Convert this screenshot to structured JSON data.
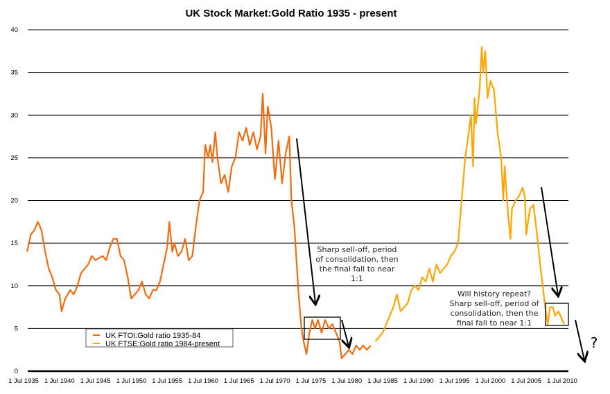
{
  "chart_data": {
    "type": "line",
    "title": "UK Stock Market:Gold Ratio 1935 - present",
    "xlabel": "",
    "ylabel": "",
    "ylim": [
      0,
      40
    ],
    "xlim": [
      1935,
      2010
    ],
    "grid": true,
    "y_ticks": [
      "0",
      "5",
      "10",
      "15",
      "20",
      "25",
      "30",
      "35",
      "40"
    ],
    "x_ticks": [
      "1 Jul 1935",
      "1 Jul 1940",
      "1 Jul 1945",
      "1 Jul 1950",
      "1 Jul 1955",
      "1 Jul 1960",
      "1 Jul 1965",
      "1 Jul 1970",
      "1 Jul 1975",
      "1 Jul 1980",
      "1 Jul 1985",
      "1 Jul 1990",
      "1 Jul 1995",
      "1 Jul 2000",
      "1 Jul 2005",
      "1 Jul 2010"
    ],
    "legend_position": "bottom-left",
    "series": [
      {
        "name": "UK FTOI:Gold ratio 1935-84",
        "color": "#f26b0f",
        "points": [
          [
            1935.5,
            14
          ],
          [
            1936,
            16
          ],
          [
            1936.5,
            16.5
          ],
          [
            1937,
            17.5
          ],
          [
            1937.5,
            16.5
          ],
          [
            1938,
            14
          ],
          [
            1938.5,
            12
          ],
          [
            1939,
            11
          ],
          [
            1939.5,
            9.5
          ],
          [
            1940,
            9
          ],
          [
            1940.3,
            7
          ],
          [
            1940.8,
            8.5
          ],
          [
            1941.5,
            9.5
          ],
          [
            1942,
            9
          ],
          [
            1942.5,
            10
          ],
          [
            1943,
            11.5
          ],
          [
            1943.5,
            12
          ],
          [
            1944,
            12.5
          ],
          [
            1944.5,
            13.5
          ],
          [
            1945,
            13
          ],
          [
            1946,
            13.5
          ],
          [
            1946.5,
            13
          ],
          [
            1947,
            14.5
          ],
          [
            1947.5,
            15.5
          ],
          [
            1948,
            15.5
          ],
          [
            1948.5,
            13.5
          ],
          [
            1949,
            13
          ],
          [
            1949.5,
            11
          ],
          [
            1950,
            8.5
          ],
          [
            1950.5,
            9
          ],
          [
            1951,
            9.5
          ],
          [
            1951.5,
            10.5
          ],
          [
            1952,
            9
          ],
          [
            1952.5,
            8.5
          ],
          [
            1953,
            9.5
          ],
          [
            1953.5,
            9.5
          ],
          [
            1954,
            10.5
          ],
          [
            1954.5,
            12.5
          ],
          [
            1955,
            14.5
          ],
          [
            1955.3,
            17.5
          ],
          [
            1955.7,
            14
          ],
          [
            1956,
            15
          ],
          [
            1956.5,
            13.5
          ],
          [
            1957,
            14
          ],
          [
            1957.5,
            15.5
          ],
          [
            1958,
            13
          ],
          [
            1958.5,
            13.5
          ],
          [
            1959,
            17
          ],
          [
            1959.5,
            20
          ],
          [
            1960,
            21
          ],
          [
            1960.3,
            26.5
          ],
          [
            1960.7,
            25
          ],
          [
            1961,
            26.5
          ],
          [
            1961.3,
            24.5
          ],
          [
            1961.7,
            28
          ],
          [
            1962,
            25
          ],
          [
            1962.5,
            22
          ],
          [
            1963,
            23
          ],
          [
            1963.5,
            21
          ],
          [
            1964,
            24
          ],
          [
            1964.5,
            25
          ],
          [
            1965,
            28
          ],
          [
            1965.5,
            27
          ],
          [
            1966,
            28.5
          ],
          [
            1966.5,
            26.5
          ],
          [
            1967,
            28
          ],
          [
            1967.5,
            26
          ],
          [
            1968,
            27.5
          ],
          [
            1968.3,
            32.5
          ],
          [
            1968.7,
            25.5
          ],
          [
            1969,
            31
          ],
          [
            1969.5,
            28.5
          ],
          [
            1970,
            22.5
          ],
          [
            1970.5,
            27
          ],
          [
            1971,
            22
          ],
          [
            1971.5,
            25.5
          ],
          [
            1972,
            27.5
          ],
          [
            1972.3,
            20
          ],
          [
            1972.7,
            17
          ],
          [
            1973,
            13
          ],
          [
            1973.3,
            9
          ],
          [
            1973.7,
            5
          ],
          [
            1974,
            3.5
          ],
          [
            1974.4,
            2
          ],
          [
            1974.8,
            4.5
          ],
          [
            1975.2,
            6
          ],
          [
            1975.6,
            5
          ],
          [
            1976,
            6
          ],
          [
            1976.5,
            4.5
          ],
          [
            1977,
            6
          ],
          [
            1977.5,
            5
          ],
          [
            1978,
            5.5
          ],
          [
            1978.5,
            4.5
          ],
          [
            1979,
            3.5
          ],
          [
            1979.3,
            1.5
          ],
          [
            1979.8,
            2
          ],
          [
            1980.3,
            2.5
          ],
          [
            1980.8,
            2
          ],
          [
            1981.3,
            3
          ],
          [
            1981.8,
            2.5
          ],
          [
            1982.3,
            3
          ],
          [
            1982.8,
            2.5
          ],
          [
            1983.3,
            3
          ]
        ]
      },
      {
        "name": "UK FTSE:Gold ratio 1984-present",
        "color": "#ffa500",
        "points": [
          [
            1984,
            3.5
          ],
          [
            1984.5,
            4
          ],
          [
            1985,
            4.5
          ],
          [
            1985.5,
            5.5
          ],
          [
            1986,
            6.5
          ],
          [
            1986.5,
            7.5
          ],
          [
            1987,
            9
          ],
          [
            1987.5,
            7
          ],
          [
            1988,
            7.5
          ],
          [
            1988.5,
            8
          ],
          [
            1989,
            9.5
          ],
          [
            1989.5,
            10
          ],
          [
            1990,
            9.5
          ],
          [
            1990.5,
            11
          ],
          [
            1991,
            10.5
          ],
          [
            1991.5,
            12
          ],
          [
            1992,
            10.5
          ],
          [
            1992.5,
            12.5
          ],
          [
            1993,
            11.5
          ],
          [
            1993.5,
            12
          ],
          [
            1994,
            12.5
          ],
          [
            1994.5,
            13.5
          ],
          [
            1995,
            14
          ],
          [
            1995.5,
            15
          ],
          [
            1996,
            20
          ],
          [
            1996.5,
            25
          ],
          [
            1997,
            28
          ],
          [
            1997.3,
            30
          ],
          [
            1997.6,
            24
          ],
          [
            1997.8,
            32
          ],
          [
            1998,
            29
          ],
          [
            1998.5,
            33
          ],
          [
            1998.8,
            38
          ],
          [
            1999,
            35
          ],
          [
            1999.3,
            37.5
          ],
          [
            1999.6,
            32
          ],
          [
            2000,
            34
          ],
          [
            2000.5,
            33
          ],
          [
            2001,
            28
          ],
          [
            2001.5,
            25
          ],
          [
            2001.8,
            20
          ],
          [
            2002,
            24
          ],
          [
            2002.5,
            18
          ],
          [
            2002.8,
            15.5
          ],
          [
            2003,
            19
          ],
          [
            2003.5,
            20
          ],
          [
            2004,
            20.5
          ],
          [
            2004.5,
            21.5
          ],
          [
            2004.8,
            20.5
          ],
          [
            2005,
            16
          ],
          [
            2005.5,
            19
          ],
          [
            2006,
            19.5
          ],
          [
            2006.5,
            16
          ],
          [
            2007,
            12
          ],
          [
            2007.3,
            10
          ],
          [
            2007.7,
            7
          ],
          [
            2008,
            5.5
          ],
          [
            2008.3,
            7.5
          ],
          [
            2008.7,
            7.5
          ],
          [
            2009,
            6.5
          ],
          [
            2009.5,
            7
          ],
          [
            2010,
            6
          ],
          [
            2010.3,
            5.5
          ]
        ]
      }
    ],
    "annotations": [
      {
        "text": [
          "Sharp sell-off, period",
          "of consolidation, then",
          "the final fall to near",
          "1:1"
        ]
      },
      {
        "text": [
          "Will history repeat?",
          "Sharp sell-off, period of",
          "consolidation, then the",
          "final fall to near  1:1"
        ]
      },
      {
        "text": [
          "?"
        ]
      }
    ]
  }
}
